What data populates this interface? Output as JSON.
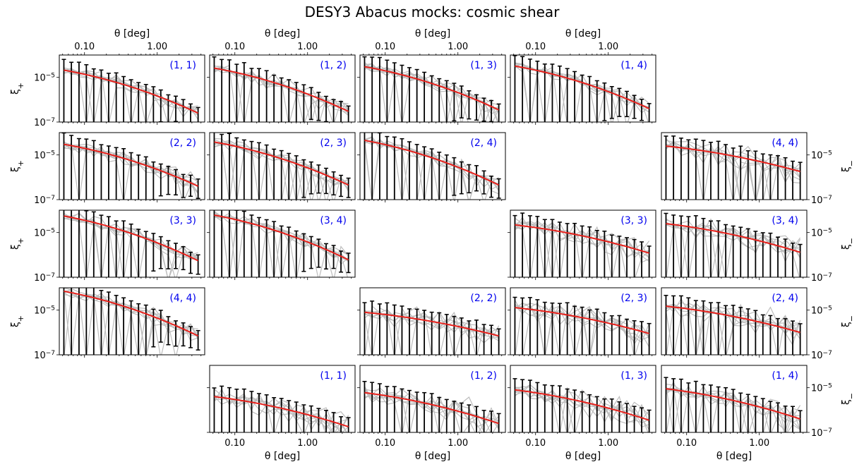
{
  "figure": {
    "title": "DESY3 Abacus mocks: cosmic shear"
  },
  "chart_data": {
    "type": "line",
    "title": "DESY3 Abacus mocks: cosmic shear",
    "xlabel": "θ [deg]",
    "ylabel_plus": "ξ+",
    "ylabel_minus": "ξ−",
    "x_scale": "log",
    "y_scale": "log",
    "xlim": [
      0.045,
      4.5
    ],
    "ylim": [
      1e-07,
      0.0001
    ],
    "xticks": [
      0.1,
      1.0
    ],
    "xtick_labels": [
      "0.10",
      "1.00"
    ],
    "yticks": [
      1e-07,
      1e-05
    ],
    "ytick_labels": [
      "10−7",
      "10−5"
    ],
    "theta_bins": [
      0.052,
      0.066,
      0.084,
      0.106,
      0.134,
      0.17,
      0.215,
      0.273,
      0.345,
      0.437,
      0.553,
      0.7,
      0.887,
      1.12,
      1.42,
      1.8,
      2.28,
      2.88,
      3.65
    ],
    "colors": {
      "model": "#e8211c",
      "mean_errorbars": "#000000",
      "mocks": "#bdbdbd",
      "panel_label": "#0000ee"
    },
    "series_description": {
      "model": "red line",
      "mean": "black error bars",
      "mocks": "grey lines"
    },
    "panels": [
      {
        "row": 0,
        "col": 0,
        "stat": "xi_plus",
        "label": "(1, 1)",
        "model_start": 2.1e-05,
        "model_end": 2.5e-07
      },
      {
        "row": 0,
        "col": 1,
        "stat": "xi_plus",
        "label": "(1, 2)",
        "model_start": 2.6e-05,
        "model_end": 3e-07
      },
      {
        "row": 0,
        "col": 2,
        "stat": "xi_plus",
        "label": "(1, 3)",
        "model_start": 3e-05,
        "model_end": 3.5e-07
      },
      {
        "row": 0,
        "col": 3,
        "stat": "xi_plus",
        "label": "(1, 4)",
        "model_start": 3.2e-05,
        "model_end": 4e-07
      },
      {
        "row": 1,
        "col": 0,
        "stat": "xi_plus",
        "label": "(2, 2)",
        "model_start": 3e-05,
        "model_end": 4e-07
      },
      {
        "row": 1,
        "col": 1,
        "stat": "xi_plus",
        "label": "(2, 3)",
        "model_start": 3.8e-05,
        "model_end": 4.5e-07
      },
      {
        "row": 1,
        "col": 2,
        "stat": "xi_plus",
        "label": "(2, 4)",
        "model_start": 4.5e-05,
        "model_end": 4.5e-07
      },
      {
        "row": 1,
        "col": 4,
        "stat": "xi_minus",
        "label": "(4, 4)",
        "model_start": 2.5e-05,
        "model_end": 1.8e-06
      },
      {
        "row": 2,
        "col": 0,
        "stat": "xi_plus",
        "label": "(3, 3)",
        "model_start": 5.5e-05,
        "model_end": 5.5e-07
      },
      {
        "row": 2,
        "col": 1,
        "stat": "xi_plus",
        "label": "(3, 4)",
        "model_start": 6e-05,
        "model_end": 6e-07
      },
      {
        "row": 2,
        "col": 3,
        "stat": "xi_minus",
        "label": "(3, 3)",
        "model_start": 2.2e-05,
        "model_end": 1.2e-06
      },
      {
        "row": 2,
        "col": 4,
        "stat": "xi_minus",
        "label": "(3, 4)",
        "model_start": 2.5e-05,
        "model_end": 1.3e-06
      },
      {
        "row": 3,
        "col": 0,
        "stat": "xi_plus",
        "label": "(4, 4)",
        "model_start": 7e-05,
        "model_end": 7e-07
      },
      {
        "row": 3,
        "col": 2,
        "stat": "xi_minus",
        "label": "(2, 2)",
        "model_start": 8e-06,
        "model_end": 7e-07
      },
      {
        "row": 3,
        "col": 3,
        "stat": "xi_minus",
        "label": "(2, 3)",
        "model_start": 1.3e-05,
        "model_end": 9e-07
      },
      {
        "row": 3,
        "col": 4,
        "stat": "xi_minus",
        "label": "(2, 4)",
        "model_start": 1.5e-05,
        "model_end": 1e-06
      },
      {
        "row": 4,
        "col": 1,
        "stat": "xi_minus",
        "label": "(1, 1)",
        "model_start": 4e-06,
        "model_end": 1.8e-07
      },
      {
        "row": 4,
        "col": 2,
        "stat": "xi_minus",
        "label": "(1, 2)",
        "model_start": 6e-06,
        "model_end": 2.5e-07
      },
      {
        "row": 4,
        "col": 3,
        "stat": "xi_minus",
        "label": "(1, 3)",
        "model_start": 8e-06,
        "model_end": 3.5e-07
      },
      {
        "row": 4,
        "col": 4,
        "stat": "xi_minus",
        "label": "(1, 4)",
        "model_start": 9e-06,
        "model_end": 4e-07
      }
    ]
  }
}
